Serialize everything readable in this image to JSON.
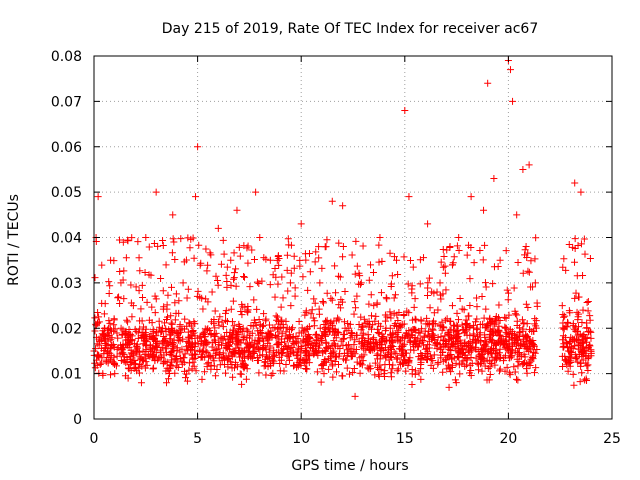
{
  "chart_data": {
    "type": "scatter",
    "title": "Day 215 of 2019, Rate Of TEC Index for receiver ac67",
    "xlabel": "GPS time / hours",
    "ylabel": "ROTI / TECUs",
    "xlim": [
      0,
      25
    ],
    "ylim": [
      0,
      0.08
    ],
    "xticks": [
      0,
      5,
      10,
      15,
      20,
      25
    ],
    "yticks": [
      0,
      0.01,
      0.02,
      0.03,
      0.04,
      0.05,
      0.06,
      0.07,
      0.08
    ],
    "xtick_labels": [
      "0",
      "5",
      "10",
      "15",
      "20",
      "25"
    ],
    "ytick_labels": [
      "0",
      "0.01",
      "0.02",
      "0.03",
      "0.04",
      "0.05",
      "0.06",
      "0.07",
      "0.08"
    ],
    "grid": true,
    "marker": "+",
    "color": "#ff0000",
    "series": [
      {
        "name": "ROTI",
        "data_gap_hours": [
          21.4,
          22.6
        ],
        "x": [
          0.0,
          0.1,
          0.2,
          0.3,
          0.5,
          0.8,
          1.0,
          1.3,
          1.6,
          1.9,
          2.2,
          2.5,
          2.8,
          3.0,
          3.3,
          3.5,
          3.8,
          4.0,
          4.3,
          4.6,
          4.9,
          5.0,
          5.4,
          5.7,
          6.0,
          6.3,
          6.6,
          6.9,
          7.2,
          7.5,
          7.8,
          8.0,
          8.3,
          8.6,
          8.9,
          9.2,
          9.5,
          9.8,
          10.0,
          10.3,
          10.6,
          10.9,
          11.2,
          11.5,
          11.8,
          12.0,
          12.3,
          12.6,
          12.9,
          13.2,
          13.5,
          13.8,
          14.0,
          14.3,
          14.6,
          14.9,
          15.0,
          15.2,
          15.5,
          15.8,
          16.1,
          16.4,
          16.7,
          17.0,
          17.3,
          17.6,
          17.9,
          18.2,
          18.5,
          18.8,
          19.0,
          19.3,
          19.6,
          19.9,
          20.0,
          20.1,
          20.2,
          20.4,
          20.7,
          21.0,
          21.3,
          22.6,
          22.9,
          23.2,
          23.5,
          23.8
        ],
        "y": [
          0.015,
          0.04,
          0.049,
          0.012,
          0.02,
          0.035,
          0.01,
          0.03,
          0.018,
          0.025,
          0.012,
          0.04,
          0.015,
          0.05,
          0.02,
          0.008,
          0.045,
          0.013,
          0.03,
          0.018,
          0.049,
          0.06,
          0.015,
          0.028,
          0.042,
          0.012,
          0.035,
          0.046,
          0.02,
          0.015,
          0.05,
          0.04,
          0.022,
          0.013,
          0.036,
          0.017,
          0.025,
          0.012,
          0.043,
          0.02,
          0.015,
          0.03,
          0.038,
          0.048,
          0.012,
          0.047,
          0.02,
          0.005,
          0.03,
          0.016,
          0.025,
          0.04,
          0.01,
          0.02,
          0.035,
          0.015,
          0.068,
          0.049,
          0.022,
          0.014,
          0.043,
          0.018,
          0.03,
          0.013,
          0.025,
          0.04,
          0.016,
          0.049,
          0.02,
          0.046,
          0.074,
          0.053,
          0.035,
          0.02,
          0.079,
          0.077,
          0.07,
          0.045,
          0.055,
          0.056,
          0.03,
          0.025,
          0.015,
          0.052,
          0.05,
          0.018
        ]
      }
    ]
  }
}
